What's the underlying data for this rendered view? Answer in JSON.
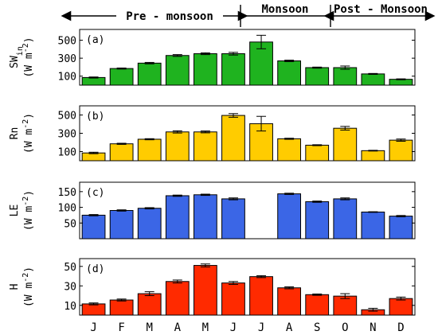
{
  "seasons": [
    {
      "label": "Pre - monsoon"
    },
    {
      "label": "Monsoon"
    },
    {
      "label": "Post - Monsoon"
    }
  ],
  "months": [
    "J",
    "F",
    "M",
    "A",
    "M",
    "J",
    "J",
    "A",
    "S",
    "O",
    "N",
    "D"
  ],
  "chart_data": [
    {
      "type": "bar",
      "panel_label": "(a)",
      "ylabel_main": "SW",
      "ylabel_sub": "in",
      "ylabel_unit": "(W m",
      "ylabel_exp": "-2",
      "ylabel_close": ")",
      "color": "#1fb31f",
      "ylim": [
        0,
        620
      ],
      "yticks": [
        100,
        300,
        500
      ],
      "values": [
        85,
        185,
        245,
        330,
        350,
        350,
        480,
        270,
        195,
        195,
        125,
        65
      ],
      "errors": [
        6,
        6,
        8,
        10,
        10,
        15,
        75,
        8,
        6,
        18,
        5,
        5
      ]
    },
    {
      "type": "bar",
      "panel_label": "(b)",
      "ylabel_main": "Rn",
      "ylabel_sub": "",
      "ylabel_unit": "(W m",
      "ylabel_exp": "-2",
      "ylabel_close": ")",
      "color": "#ffcc00",
      "ylim": [
        0,
        600
      ],
      "yticks": [
        100,
        300,
        500
      ],
      "values": [
        85,
        185,
        235,
        315,
        315,
        495,
        405,
        240,
        170,
        355,
        110,
        225
      ],
      "errors": [
        8,
        6,
        6,
        12,
        10,
        20,
        80,
        6,
        5,
        20,
        4,
        12
      ]
    },
    {
      "type": "bar",
      "panel_label": "(c)",
      "ylabel_main": "LE",
      "ylabel_sub": "",
      "ylabel_unit": "(W m",
      "ylabel_exp": "-2",
      "ylabel_close": ")",
      "color": "#3b66e6",
      "ylim": [
        0,
        180
      ],
      "yticks": [
        50,
        100,
        150
      ],
      "values": [
        75,
        90,
        97,
        137,
        140,
        127,
        null,
        143,
        118,
        127,
        85,
        72
      ],
      "errors": [
        2,
        2,
        2,
        2,
        2,
        3,
        null,
        2,
        2,
        3,
        1,
        2
      ]
    },
    {
      "type": "bar",
      "panel_label": "(d)",
      "ylabel_main": "H",
      "ylabel_sub": "",
      "ylabel_unit": "(W m",
      "ylabel_exp": "-2",
      "ylabel_close": ")",
      "color": "#ff2a00",
      "ylim": [
        0,
        58
      ],
      "yticks": [
        10,
        30,
        50
      ],
      "values": [
        11.5,
        15.5,
        22,
        34.5,
        51,
        33,
        39.5,
        28,
        21,
        19.5,
        5.5,
        17
      ],
      "errors": [
        1,
        1,
        2,
        1.5,
        1.5,
        1.5,
        1,
        1,
        0.7,
        2.5,
        1.5,
        1.5
      ]
    }
  ]
}
